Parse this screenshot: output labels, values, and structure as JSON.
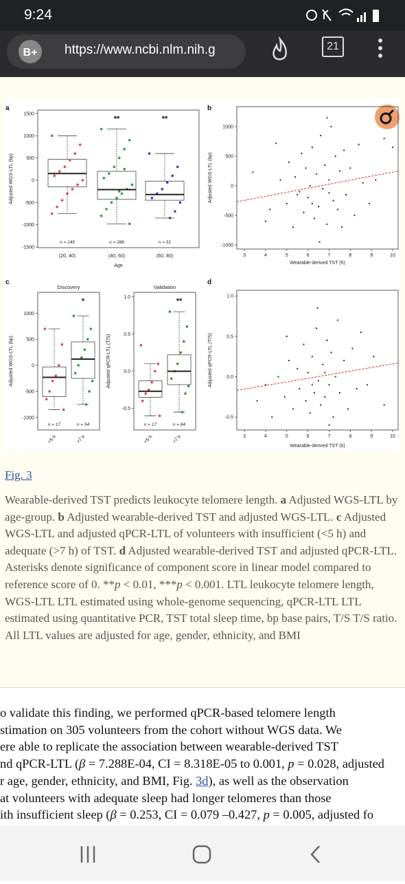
{
  "status_bar": {
    "time": "9:24"
  },
  "browser": {
    "url": "https://www.ncbi.nlm.nih.g",
    "tab_count": "21"
  },
  "figure": {
    "panels": [
      {
        "label": "a",
        "type": "box",
        "ylabel": "Adjusted WGS-LTL (bp)",
        "xlabel": "Age",
        "categories": [
          "(20, 40)",
          "(40, 60)",
          "(60, 80)"
        ],
        "n_labels": [
          "n = 145",
          "n = 286",
          "n = 51"
        ],
        "significance": [
          null,
          "**",
          "**"
        ],
        "ylim": [
          -1515,
          1577
        ],
        "yticks": [
          -1500,
          -1000,
          -500,
          0,
          500,
          1000,
          1500
        ],
        "colors": [
          "#e04848",
          "#2f9a3a",
          "#3a3ac8"
        ],
        "boxes": [
          {
            "whisker_low": -750,
            "q1": -150,
            "median": 150,
            "q3": 470,
            "whisker_high": 1000,
            "points": [
              1000,
              800,
              600,
              450,
              300,
              200,
              100,
              0,
              -100,
              -200,
              -300,
              -450,
              -600,
              -750
            ]
          },
          {
            "whisker_low": -980,
            "q1": -430,
            "median": -210,
            "q3": 200,
            "whisker_high": 1150,
            "points": [
              1150,
              900,
              700,
              500,
              300,
              150,
              50,
              -100,
              -200,
              -300,
              -400,
              -500,
              -650,
              -800,
              -980,
              250,
              -250
            ]
          },
          {
            "whisker_low": -850,
            "q1": -450,
            "median": -320,
            "q3": -20,
            "whisker_high": 600,
            "points": [
              600,
              300,
              100,
              -50,
              -200,
              -300,
              -400,
              -500,
              -700,
              -850
            ]
          }
        ]
      },
      {
        "label": "b",
        "type": "scatter",
        "ylabel": "Adjusted WGS-LTL (bp)",
        "xlabel": "Wearable-derived TST (h)",
        "xlim": [
          2.64,
          10.26
        ],
        "ylim": [
          -1070,
          1340
        ],
        "xticks": [
          3,
          4,
          5,
          6,
          7,
          8,
          9,
          10
        ],
        "yticks": [
          -1000,
          -500,
          0,
          500,
          1000
        ],
        "point_color": "#222222",
        "x": [
          3.4,
          4.0,
          4.2,
          4.5,
          4.7,
          5.0,
          5.1,
          5.3,
          5.4,
          5.6,
          5.7,
          5.8,
          5.9,
          6.0,
          6.1,
          6.2,
          6.3,
          6.4,
          6.5,
          6.6,
          6.7,
          6.8,
          6.9,
          7.0,
          7.1,
          7.2,
          7.3,
          7.4,
          7.5,
          7.6,
          7.7,
          7.8,
          8.0,
          8.2,
          8.4,
          8.6,
          8.9,
          9.2,
          9.6,
          10.0,
          6.55,
          6.9,
          5.5,
          6.2,
          7.0
        ],
        "y": [
          230,
          -600,
          -400,
          720,
          100,
          -300,
          400,
          -700,
          150,
          -100,
          550,
          -450,
          300,
          -200,
          0,
          650,
          -550,
          200,
          -350,
          850,
          -50,
          350,
          -650,
          100,
          1000,
          -250,
          500,
          -400,
          250,
          -700,
          600,
          -150,
          300,
          -500,
          700,
          50,
          -300,
          100,
          800,
          650,
          -950,
          1150,
          -150,
          -300,
          -120
        ],
        "trend_line": {
          "x": [
            2.64,
            10.26
          ],
          "y": [
            -270,
            250
          ],
          "color": "#e04848"
        }
      },
      {
        "label": "c",
        "title": "Discovery",
        "type": "box",
        "ylabel": "Adjusted WGS-LTL (bp)",
        "categories": [
          "<5 h",
          ">7 h"
        ],
        "n_labels": [
          "n = 17",
          "n = 54"
        ],
        "significance": [
          null,
          "*"
        ],
        "ylim": [
          -1240,
          1400
        ],
        "yticks": [
          -1000,
          -500,
          0,
          500,
          1000
        ],
        "colors": [
          "#e04848",
          "#2f9a3a"
        ],
        "boxes": [
          {
            "whisker_low": -850,
            "q1": -600,
            "median": -230,
            "q3": -30,
            "whisker_high": 700,
            "points": [
              700,
              400,
              0,
              -200,
              -300,
              -500,
              -650,
              -850
            ]
          },
          {
            "whisker_low": -750,
            "q1": -250,
            "median": 120,
            "q3": 450,
            "whisker_high": 950,
            "points": [
              950,
              700,
              500,
              300,
              150,
              0,
              -150,
              -300,
              -500,
              -750
            ]
          }
        ]
      },
      {
        "title": "Validation",
        "type": "box",
        "ylabel": "Adjusted qPCR-LTL (T/S)",
        "categories": [
          "<5 h",
          ">7 h"
        ],
        "n_labels": [
          "n = 17",
          "n = 84"
        ],
        "significance": [
          null,
          "**"
        ],
        "ylim": [
          -0.79,
          1.06
        ],
        "yticks": [
          -0.5,
          {
            "value": 0,
            "label": "0.0"
          },
          0.5,
          {
            "value": 1,
            "label": "1.0"
          }
        ],
        "colors": [
          "#e04848",
          "#2f9a3a"
        ],
        "boxes": [
          {
            "whisker_low": -0.6,
            "q1": -0.35,
            "median": -0.27,
            "q3": -0.13,
            "whisker_high": 0.1,
            "points": [
              0.35,
              0.1,
              0,
              -0.15,
              -0.25,
              -0.3,
              -0.4,
              -0.6
            ]
          },
          {
            "whisker_low": -0.55,
            "q1": -0.18,
            "median": 0.0,
            "q3": 0.22,
            "whisker_high": 0.8,
            "points": [
              0.8,
              0.6,
              0.4,
              0.25,
              0.1,
              0,
              -0.1,
              -0.2,
              -0.3,
              -0.55
            ]
          }
        ]
      },
      {
        "label": "d",
        "type": "scatter",
        "ylabel": "Adjusted qPCR-LTL (T/S)",
        "xlabel": "Wearable-derived TST (h)",
        "xlim": [
          2.64,
          10.26
        ],
        "ylim": [
          -0.66,
          1.07
        ],
        "xticks": [
          3,
          4,
          5,
          6,
          7,
          8,
          9,
          10
        ],
        "yticks": [
          -0.5,
          {
            "value": 0,
            "label": "0.0"
          },
          0.5,
          {
            "value": 1,
            "label": "1.0"
          }
        ],
        "point_color": "#222222",
        "x": [
          3.6,
          4.0,
          4.3,
          4.6,
          4.9,
          5.1,
          5.3,
          5.5,
          5.6,
          5.8,
          5.9,
          6.0,
          6.1,
          6.2,
          6.3,
          6.4,
          6.5,
          6.6,
          6.7,
          6.8,
          6.9,
          7.0,
          7.1,
          7.2,
          7.3,
          7.4,
          7.5,
          7.7,
          7.9,
          8.1,
          8.3,
          8.5,
          8.8,
          9.1,
          9.6,
          6.45,
          7.0,
          5.0,
          6.8,
          6.2
        ],
        "y": [
          -0.3,
          -0.1,
          -0.5,
          0.0,
          -0.25,
          0.2,
          -0.4,
          0.1,
          -0.15,
          0.4,
          -0.3,
          0.05,
          -0.45,
          0.25,
          -0.2,
          0.6,
          -0.05,
          -0.35,
          0.15,
          -0.25,
          0.45,
          -0.1,
          0.3,
          -0.5,
          0.0,
          0.7,
          -0.2,
          0.2,
          -0.4,
          0.35,
          -0.15,
          0.55,
          -0.1,
          0.25,
          -0.35,
          0.85,
          -0.6,
          0.5,
          0.05,
          -0.1
        ],
        "trend_line": {
          "x": [
            2.64,
            10.26
          ],
          "y": [
            -0.17,
            0.17
          ],
          "color": "#e04848"
        }
      }
    ],
    "link": "Fig. 3",
    "caption": [
      "Wearable-derived TST predicts leukocyte telomere length. ",
      {
        "text": "a",
        "style": "bold"
      },
      " Adjusted WGS-LTL by age-group. ",
      {
        "text": "b",
        "style": "bold"
      },
      " Adjusted wearable-derived TST and adjusted WGS-LTL. ",
      {
        "text": "c",
        "style": "bold"
      },
      " Adjusted WGS-LTL and adjusted qPCR-LTL of volunteers with insufficient (<5 h) and adequate (>7 h) of TST. ",
      {
        "text": "d",
        "style": "bold"
      },
      " Adjusted wearable-derived TST and adjusted qPCR-LTL. Asterisks denote significance of component score in linear model compared to reference score of 0. **",
      {
        "text": "p",
        "style": "italic"
      },
      " < 0.01, ***",
      {
        "text": "p",
        "style": "italic"
      },
      " < 0.001. LTL leukocyte telomere length, WGS-LTL LTL estimated using whole-genome sequencing, qPCR-LTL LTL estimated using quantitative PCR, TST total sleep time, bp base pairs, T/S T/S ratio. All LTL values are adjusted for age, gender, ethnicity, and BMI"
    ]
  },
  "body": {
    "lines": [
      [
        "o validate this finding, we performed qPCR-based telomere length"
      ],
      [
        "stimation on 305 volunteers from the cohort without WGS data. We"
      ],
      [
        "ere able to replicate the association between wearable-derived TST"
      ],
      [
        "nd qPCR-LTL (",
        {
          "text": "β",
          "style": "italic"
        },
        " = 7.288E-04, CI = 8.318E-05 to 0.001, ",
        {
          "text": "p",
          "style": "italic"
        },
        " = 0.028, adjusted"
      ],
      [
        "r age, gender, ethnicity, and BMI, Fig. ",
        {
          "text": "3d",
          "style": "link"
        },
        "), as well as the observation"
      ],
      [
        "at volunteers with adequate sleep had longer telomeres than those"
      ],
      [
        "ith insufficient sleep (",
        {
          "text": "β",
          "style": "italic"
        },
        " = 0.253, CI = 0.079 –0.427, ",
        {
          "text": "p",
          "style": "italic"
        },
        " = 0.005, adjusted fo"
      ]
    ]
  }
}
